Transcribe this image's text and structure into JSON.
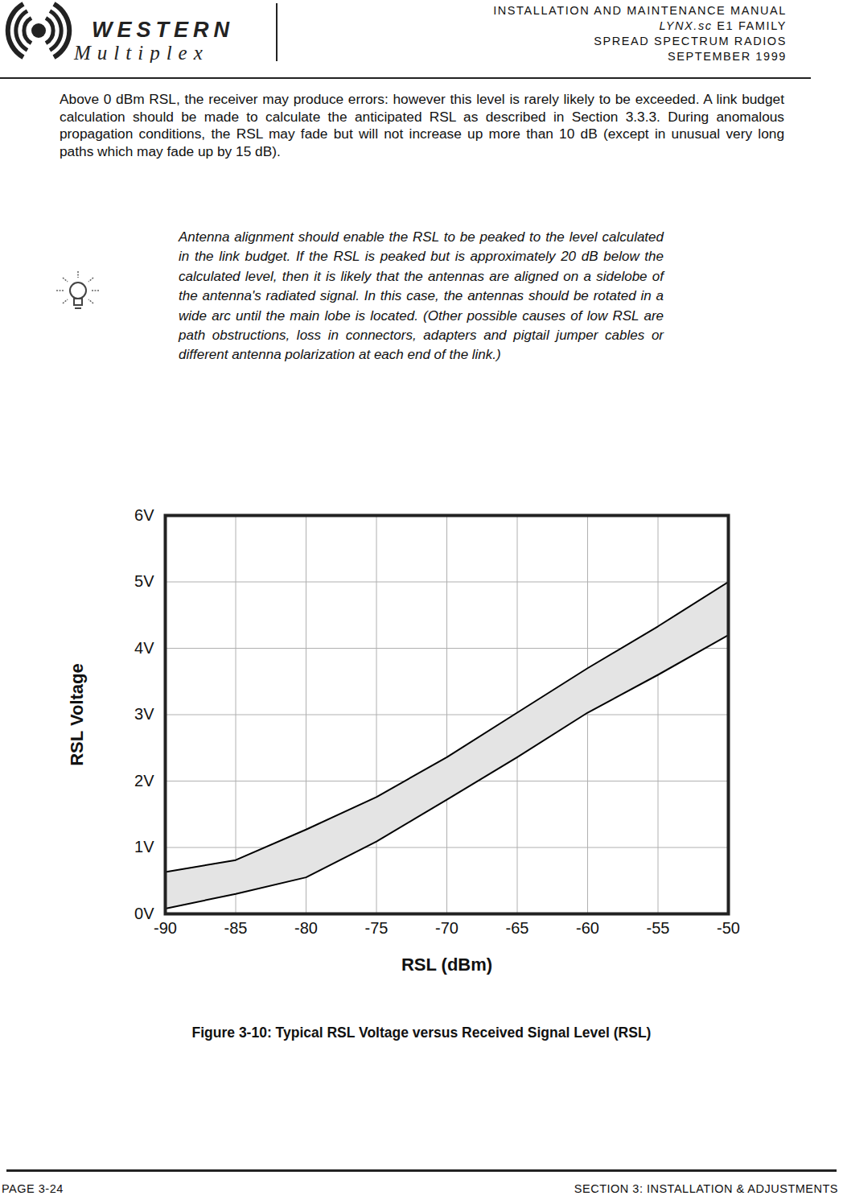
{
  "header": {
    "logo": {
      "word1": "WESTERN",
      "word2": "Multiplex"
    },
    "lines": [
      {
        "text": "INSTALLATION AND MAINTENANCE MANUAL"
      },
      {
        "italic": "LYNX.sc",
        "text": " E1 FAMILY"
      },
      {
        "text": "SPREAD SPECTRUM RADIOS"
      },
      {
        "text": "SEPTEMBER 1999"
      }
    ]
  },
  "paragraph": "Above 0 dBm RSL, the receiver may produce errors: however this level is rarely likely to be exceeded. A link budget calculation should be made to calculate the anticipated RSL as described in Section 3.3.3. During anomalous propagation conditions, the RSL may fade but will not increase up more than 10 dB (except in unusual very long paths which may fade up by 15 dB).",
  "tip": "Antenna alignment should enable the RSL to be peaked to the level calculated in the link budget. If the RSL is peaked but is approximately 20 dB below the calculated level, then it is likely that the antennas are aligned on a sidelobe of the antenna's radiated signal. In this case, the antennas should be rotated in a wide arc until the main lobe is located. (Other possible causes of low RSL are path obstructions, loss in connectors, adapters and pigtail jumper cables or different antenna polarization at each end of the link.)",
  "chart_data": {
    "type": "area",
    "x_label": "RSL (dBm)",
    "y_label": "RSL Voltage",
    "x": [
      -90,
      -85,
      -80,
      -75,
      -70,
      -65,
      -60,
      -55,
      -50
    ],
    "series": [
      {
        "color": "#000000",
        "values": [
          0.63,
          0.81,
          1.27,
          1.76,
          2.36,
          3.03,
          3.7,
          4.33,
          5.0
        ]
      },
      {
        "color": "#000000",
        "values": [
          0.08,
          0.3,
          0.55,
          1.09,
          1.72,
          2.36,
          3.03,
          3.6,
          4.2
        ]
      }
    ],
    "color": "#e4e4e4",
    "xlim": [
      -90,
      -50
    ],
    "xticks": [
      -90,
      -85,
      -80,
      -75,
      -70,
      -65,
      -60,
      -55,
      -50
    ],
    "ylim": [
      0,
      6
    ],
    "yticks": [
      {
        "value": 0,
        "label": "0V"
      },
      {
        "value": 1,
        "label": "1V"
      },
      {
        "value": 2,
        "label": "2V"
      },
      {
        "value": 3,
        "label": "3V"
      },
      {
        "value": 4,
        "label": "4V"
      },
      {
        "value": 5,
        "label": "5V"
      },
      {
        "value": 6,
        "label": "6V"
      }
    ],
    "grid": true
  },
  "caption": "Figure 3-10: Typical RSL Voltage versus Received Signal Level (RSL)",
  "footer": {
    "left": "PAGE 3-24",
    "right": "SECTION 3: INSTALLATION & ADJUSTMENTS"
  }
}
